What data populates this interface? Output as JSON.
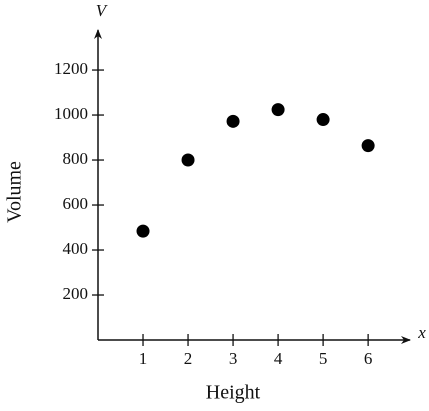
{
  "chart_data": {
    "type": "scatter",
    "x_label": "Height",
    "y_label": "Volume",
    "x_axis_symbol": "x",
    "y_axis_symbol": "V",
    "x": [
      1,
      2,
      3,
      4,
      5,
      6
    ],
    "values": [
      484,
      800,
      972,
      1024,
      980,
      864
    ],
    "color": "#000000",
    "xlim": [
      0,
      6.93
    ],
    "ylim": [
      0,
      1378
    ],
    "xticks": [
      1,
      2,
      3,
      4,
      5,
      6
    ],
    "yticks": [
      200,
      400,
      600,
      800,
      1000,
      1200
    ],
    "grid": false
  }
}
